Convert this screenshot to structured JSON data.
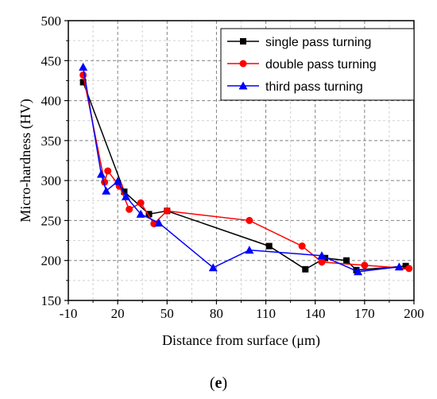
{
  "chart_data": {
    "type": "line",
    "title": "",
    "xlabel": "Distance from surface (μm)",
    "ylabel": "Micro-hardness (HV)",
    "xlim": [
      -10,
      200
    ],
    "ylim": [
      150,
      500
    ],
    "x_ticks": [
      "-10",
      "20",
      "50",
      "80",
      "110",
      "140",
      "170",
      "200"
    ],
    "y_ticks": [
      "150",
      "200",
      "250",
      "300",
      "350",
      "400",
      "450",
      "500"
    ],
    "grid": true,
    "legend_position": "top-right",
    "series": [
      {
        "name": "single pass turning",
        "color": "#000000",
        "marker": "square",
        "x": [
          -1,
          24,
          39,
          50,
          112,
          134,
          146,
          159,
          165,
          195
        ],
        "y": [
          423,
          286,
          258,
          262,
          218,
          189,
          203,
          200,
          188,
          193
        ]
      },
      {
        "name": "double pass turning",
        "color": "#ff0000",
        "marker": "circle",
        "x": [
          -1,
          12,
          14,
          21,
          27,
          34,
          42,
          50,
          100,
          132,
          144,
          170,
          197
        ],
        "y": [
          432,
          298,
          312,
          293,
          264,
          272,
          246,
          262,
          250,
          218,
          198,
          194,
          190
        ]
      },
      {
        "name": "third pass turning",
        "color": "#0000ff",
        "marker": "triangle",
        "x": [
          -1,
          10,
          13,
          20,
          25,
          34,
          45,
          78,
          100,
          144,
          166,
          191
        ],
        "y": [
          442,
          308,
          287,
          299,
          280,
          258,
          247,
          191,
          213,
          206,
          186,
          192
        ]
      }
    ]
  },
  "caption": "(e)"
}
